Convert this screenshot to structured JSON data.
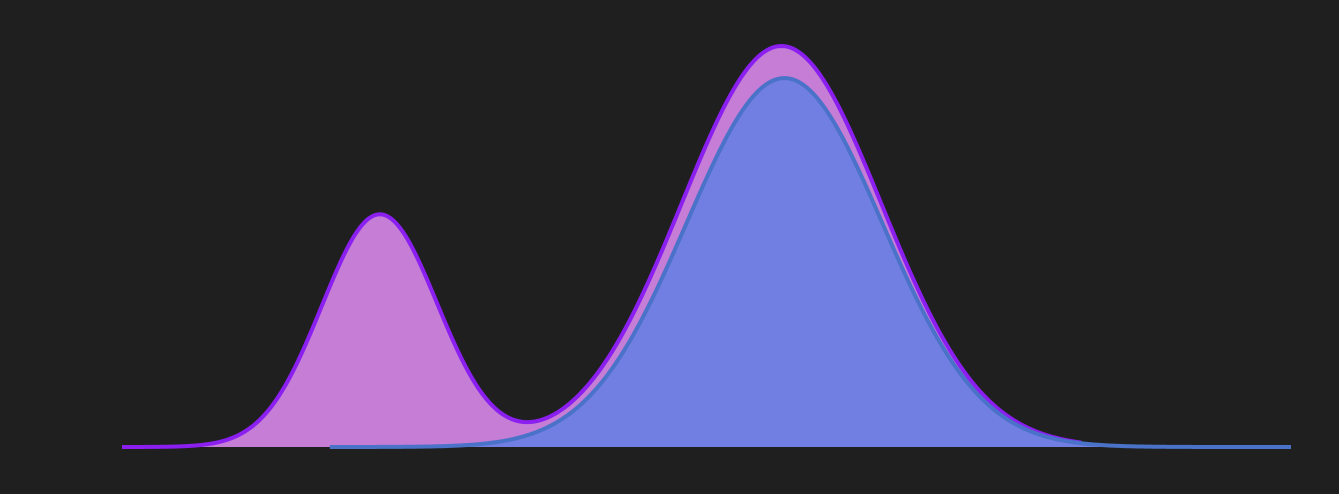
{
  "chart_data": {
    "type": "area",
    "title": "",
    "xlabel": "",
    "ylabel": "",
    "grid": false,
    "legend": "none",
    "xlim": [
      0,
      1170
    ],
    "ylim": [
      0,
      1.0
    ],
    "series": [
      {
        "key": "bimodal",
        "fill": "#c57dd6",
        "stroke": "#8a1ff0",
        "x_range": [
          0,
          960
        ],
        "components": [
          {
            "amplitude": 0.58,
            "mean": 258,
            "sd": 58
          },
          {
            "amplitude": 1.0,
            "mean": 660,
            "sd": 100
          }
        ]
      },
      {
        "key": "unimodal",
        "fill": "#727fe2",
        "stroke": "#4a72c8",
        "x_range": [
          208,
          1170
        ],
        "components": [
          {
            "amplitude": 0.92,
            "mean": 663,
            "sd": 98
          }
        ]
      }
    ]
  }
}
